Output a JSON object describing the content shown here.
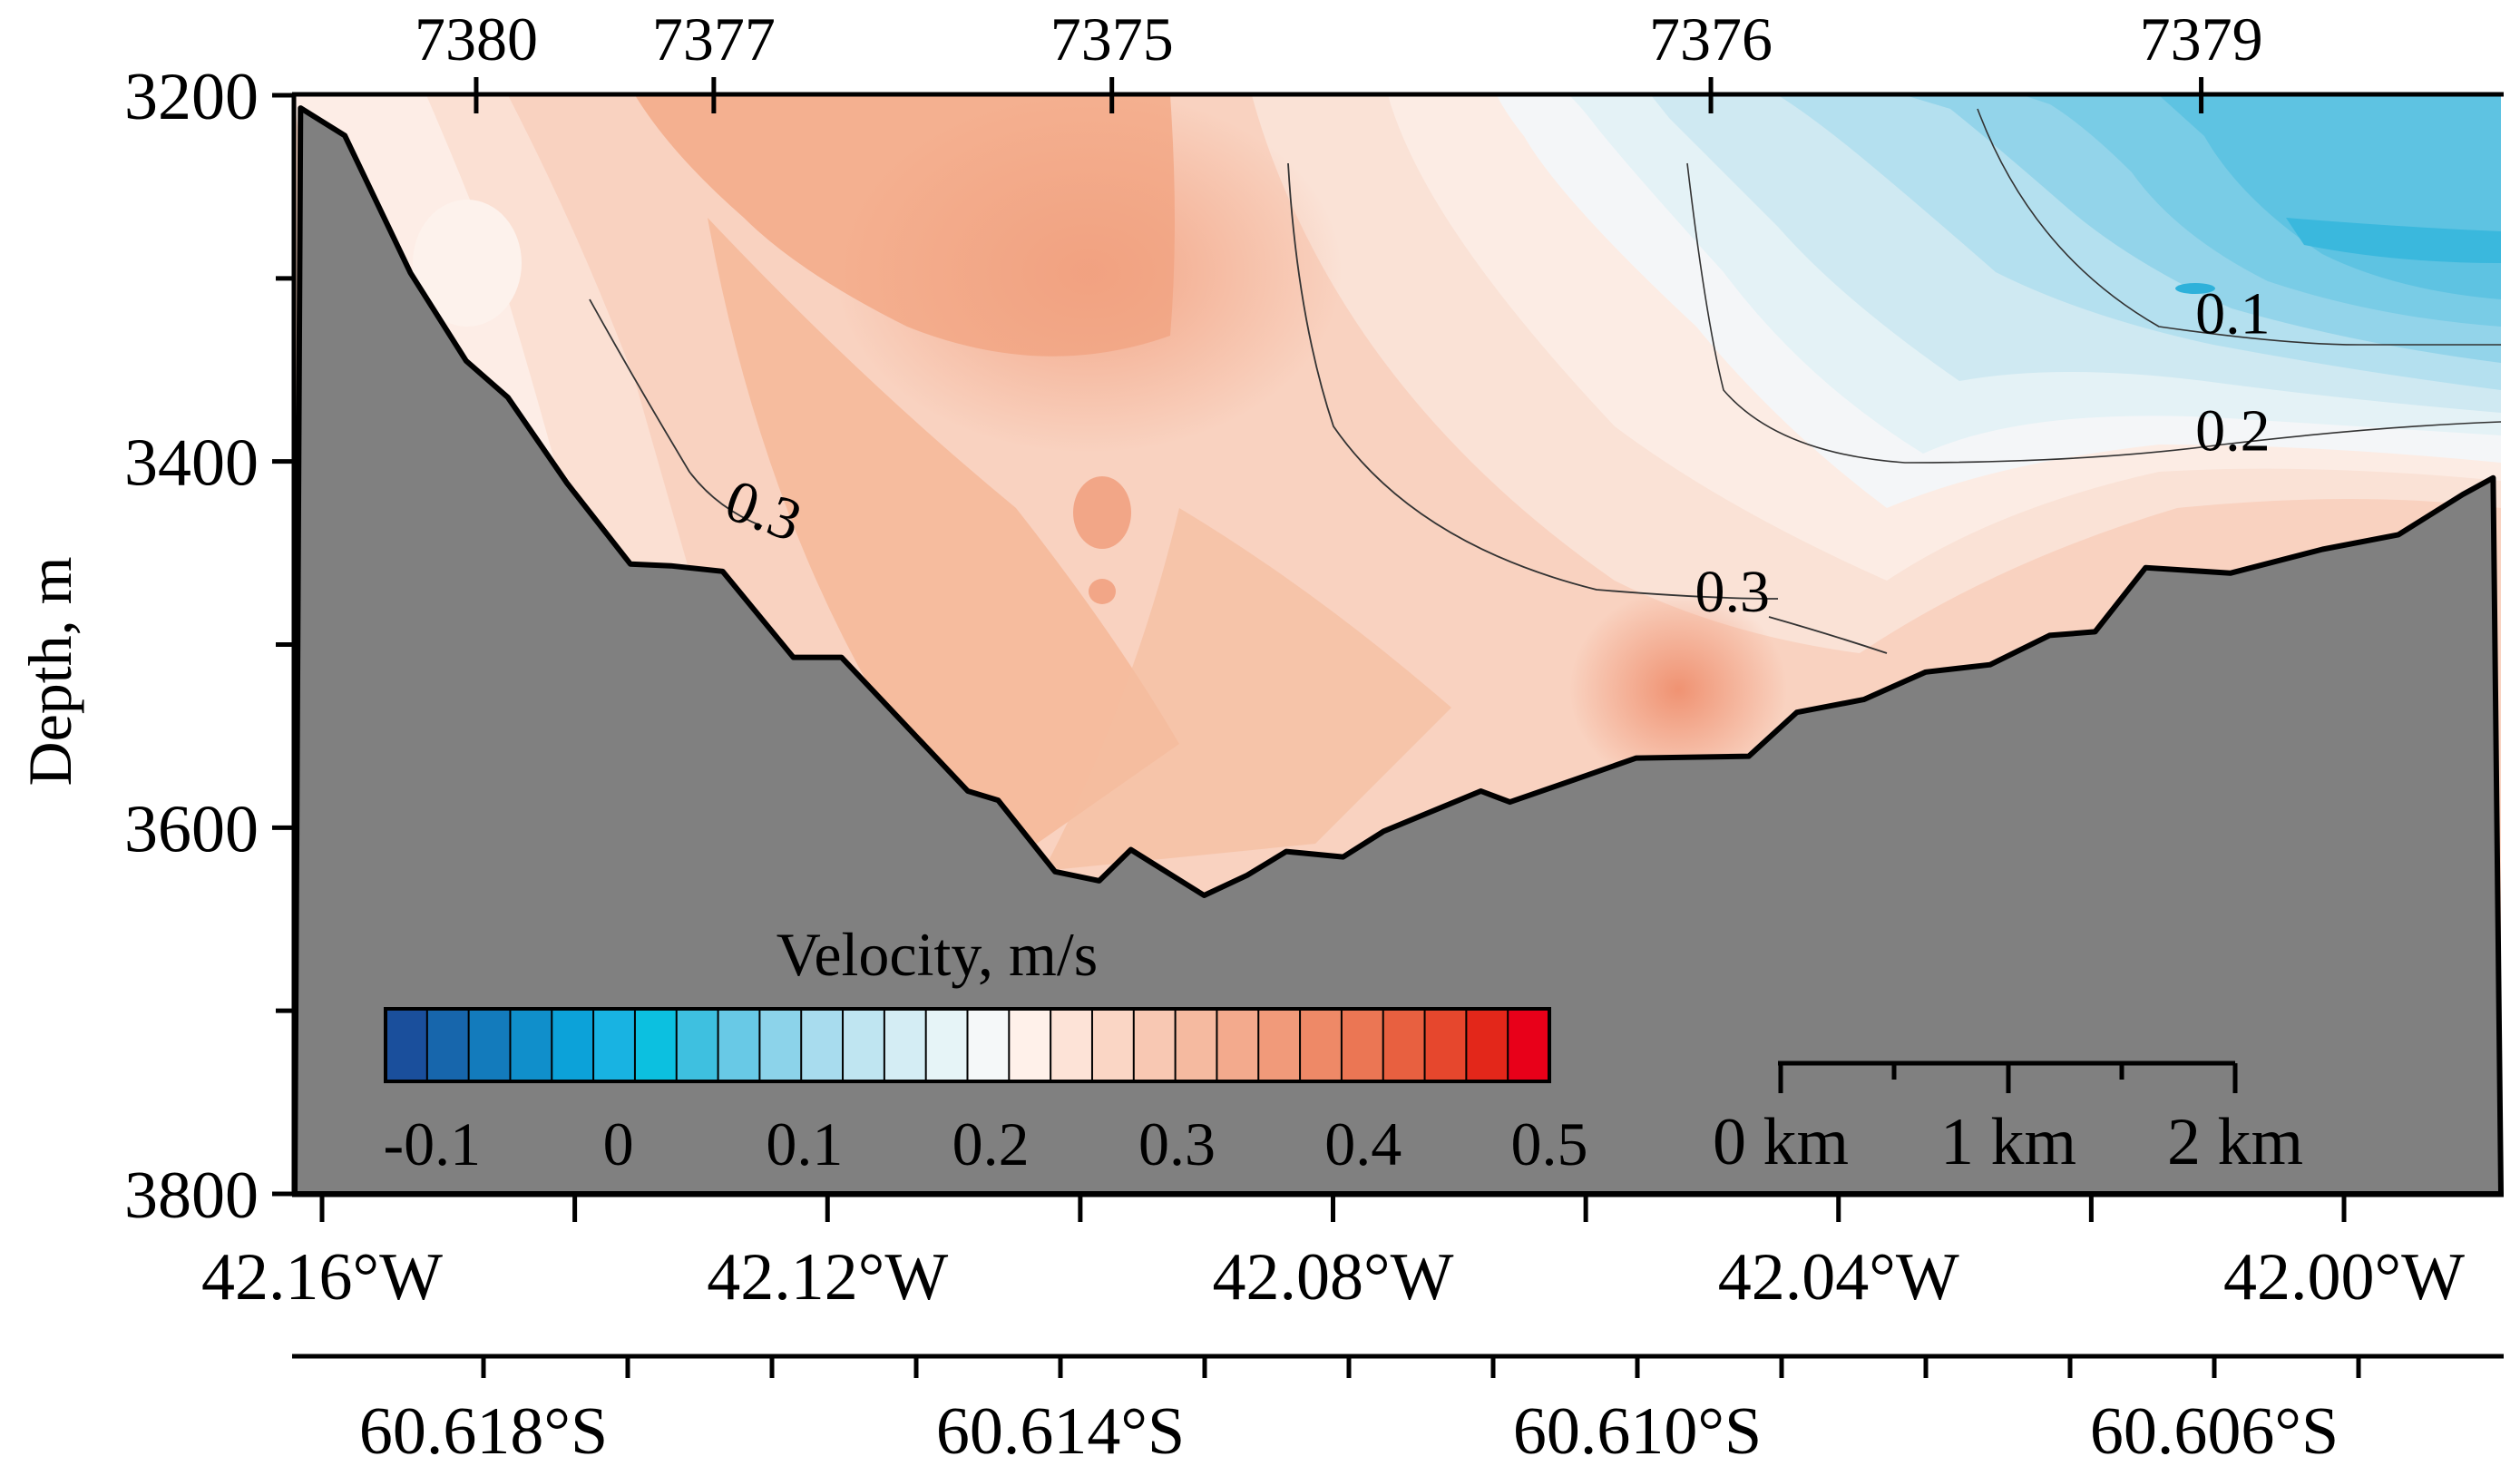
{
  "chart_data": {
    "type": "contour",
    "title": "",
    "ylabel": "Depth, m",
    "ylim": [
      3200,
      3800
    ],
    "yticks": [
      3200,
      3400,
      3600,
      3800
    ],
    "ytick_labels": [
      "3200",
      "3400",
      "3600",
      "3800"
    ],
    "xlim_lon": [
      -42.1617,
      -41.9882
    ],
    "xticks_lon": [
      -42.16,
      -42.12,
      -42.08,
      -42.04,
      -42.0
    ],
    "xtick_labels_lon": [
      "42.16°W",
      "42.12°W",
      "42.08°W",
      "42.04°W",
      "42.00°W"
    ],
    "xticks_lat": [
      -60.618,
      -60.614,
      -60.61,
      -60.606
    ],
    "xtick_labels_lat": [
      "60.618°S",
      "60.614°S",
      "60.610°S",
      "60.606°S"
    ],
    "stations": [
      {
        "name": "7380",
        "lon": -42.1478
      },
      {
        "name": "7377",
        "lon": -42.129
      },
      {
        "name": "7375",
        "lon": -42.0975
      },
      {
        "name": "7376",
        "lon": -42.0501
      },
      {
        "name": "7379",
        "lon": -42.0113
      }
    ],
    "bottom_profile": [
      {
        "lon": -42.1617,
        "depth": 3207
      },
      {
        "lon": -42.1582,
        "depth": 3222
      },
      {
        "lon": -42.153,
        "depth": 3297
      },
      {
        "lon": -42.1486,
        "depth": 3345
      },
      {
        "lon": -42.1453,
        "depth": 3365
      },
      {
        "lon": -42.1406,
        "depth": 3412
      },
      {
        "lon": -42.1356,
        "depth": 3456
      },
      {
        "lon": -42.1324,
        "depth": 3457
      },
      {
        "lon": -42.1283,
        "depth": 3460
      },
      {
        "lon": -42.1227,
        "depth": 3507
      },
      {
        "lon": -42.1189,
        "depth": 3507
      },
      {
        "lon": -42.1089,
        "depth": 3580
      },
      {
        "lon": -42.1065,
        "depth": 3585
      },
      {
        "lon": -42.102,
        "depth": 3624
      },
      {
        "lon": -42.0985,
        "depth": 3629
      },
      {
        "lon": -42.096,
        "depth": 3612
      },
      {
        "lon": -42.0902,
        "depth": 3637
      },
      {
        "lon": -42.0868,
        "depth": 3626
      },
      {
        "lon": -42.0837,
        "depth": 3613
      },
      {
        "lon": -42.0792,
        "depth": 3616
      },
      {
        "lon": -42.076,
        "depth": 3602
      },
      {
        "lon": -42.0683,
        "depth": 3580
      },
      {
        "lon": -42.066,
        "depth": 3586
      },
      {
        "lon": -42.061,
        "depth": 3574
      },
      {
        "lon": -42.056,
        "depth": 3562
      },
      {
        "lon": -42.0471,
        "depth": 3561
      },
      {
        "lon": -42.0433,
        "depth": 3537
      },
      {
        "lon": -42.038,
        "depth": 3530
      },
      {
        "lon": -42.0331,
        "depth": 3515
      },
      {
        "lon": -42.028,
        "depth": 3511
      },
      {
        "lon": -42.0233,
        "depth": 3495
      },
      {
        "lon": -42.0197,
        "depth": 3493
      },
      {
        "lon": -42.0157,
        "depth": 3458
      },
      {
        "lon": -42.009,
        "depth": 3461
      },
      {
        "lon": -42.0017,
        "depth": 3448
      },
      {
        "lon": -41.9957,
        "depth": 3440
      },
      {
        "lon": -41.9906,
        "depth": 3418
      },
      {
        "lon": -41.9882,
        "depth": 3409
      }
    ],
    "contour_labels": [
      {
        "text": "0.3",
        "lon": -42.1256,
        "depth": 3437
      },
      {
        "text": "0.3",
        "lon": -42.0484,
        "depth": 3482
      },
      {
        "text": "0.1",
        "lon": -42.0088,
        "depth": 3330
      },
      {
        "text": "0.2",
        "lon": -42.0088,
        "depth": 3394
      }
    ],
    "colorbar": {
      "title": "Velocity, m/s",
      "min": -0.125,
      "max": 0.5,
      "step": 0.02,
      "tick_values": [
        -0.1,
        0,
        0.1,
        0.2,
        0.3,
        0.4,
        0.5
      ],
      "tick_labels": [
        "-0.1",
        "0",
        "0.1",
        "0.2",
        "0.3",
        "0.4",
        "0.5"
      ],
      "colors": [
        "#1a4f9c",
        "#1766ac",
        "#137bbc",
        "#108fcb",
        "#0ca2d9",
        "#18b3e2",
        "#0cc0e0",
        "#3ec0e0",
        "#68c9e6",
        "#8cd3ea",
        "#a8dcee",
        "#bfe5f1",
        "#d4edf4",
        "#e6f4f7",
        "#f5f8f9",
        "#fff1ea",
        "#fde3d7",
        "#fad6c5",
        "#f8c8b3",
        "#f5baa0",
        "#f3aa8d",
        "#f19a7a",
        "#ee8967",
        "#eb7654",
        "#e86040",
        "#e6472d",
        "#e3271a",
        "#e80019"
      ]
    },
    "scale_bar": {
      "labels": [
        "0 km",
        "1 km",
        "2 km"
      ]
    }
  }
}
